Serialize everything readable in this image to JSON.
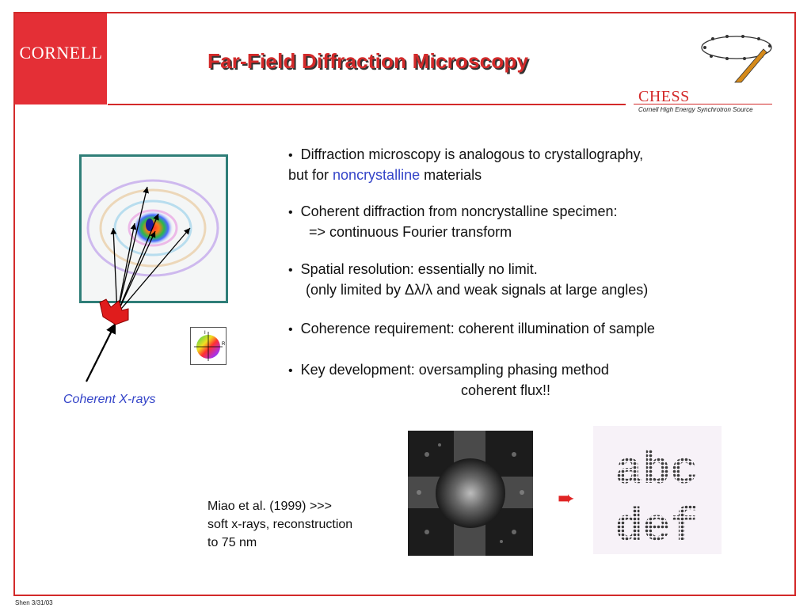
{
  "header": {
    "logo_text": "CORNELL",
    "title": "Far-Field Diffraction Microscopy",
    "chess_name": "CHESS",
    "chess_subtitle": "Cornell High Energy Synchrotron Source"
  },
  "bullets": [
    {
      "line1": "Diffraction microscopy is analogous to crystallography,",
      "line2_a": "but for ",
      "line2_accent": "noncrystalline",
      "line2_b": " materials"
    },
    {
      "line1": "Coherent diffraction from noncrystalline specimen:",
      "line2": "=>  continuous Fourier transform"
    },
    {
      "line1": "Spatial resolution:   essentially no limit.",
      "line2": "(only limited by Δλ/λ and weak signals at large angles)"
    },
    {
      "line1": "Coherence requirement:  coherent illumination of sample"
    },
    {
      "line1": "Key development:  oversampling phasing method",
      "line2": "coherent flux!!"
    }
  ],
  "figure": {
    "xray_label": "Coherent X-rays",
    "colorwheel_labels": [
      "I",
      "R"
    ]
  },
  "reference": {
    "line1": "Miao et al. (1999)  >>>",
    "line2": "soft x-rays, reconstruction",
    "line3": "to 75 nm"
  },
  "reconstruction": {
    "row1": "abc",
    "row2": "def"
  },
  "footer": "Shen 3/31/03",
  "colors": {
    "accent_red": "#d32a2a",
    "accent_blue": "#3444c8",
    "frame_teal": "#2f7e78"
  }
}
